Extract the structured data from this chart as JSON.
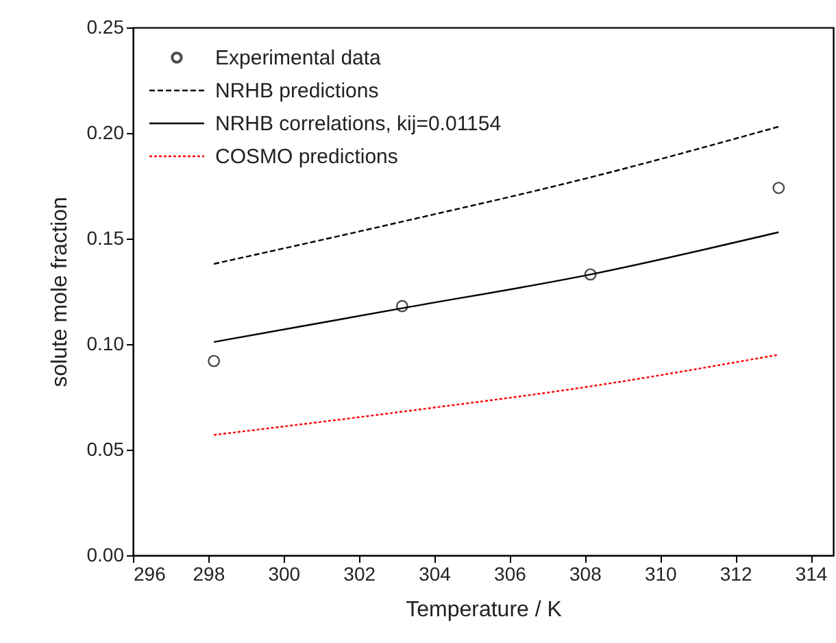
{
  "chart_data": {
    "type": "line",
    "xlabel": "Temperature / K",
    "ylabel": "solute mole fraction",
    "xlim": [
      296,
      314.6
    ],
    "xticks": [
      296,
      298,
      300,
      302,
      304,
      306,
      308,
      310,
      312,
      314
    ],
    "ylim": [
      0,
      0.25
    ],
    "yticks": [
      {
        "value": 0,
        "label": "0.00"
      },
      {
        "value": 0.05,
        "label": "0.05"
      },
      {
        "value": 0.1,
        "label": "0.10"
      },
      {
        "value": 0.15,
        "label": "0.15"
      },
      {
        "value": 0.2,
        "label": "0.20"
      },
      {
        "value": 0.25,
        "label": "0.25"
      }
    ],
    "grid": false,
    "legend": "top left",
    "series": [
      {
        "name": "Experimental data",
        "type": "scatter",
        "marker": "circle",
        "color": "#000000",
        "x": [
          298.15,
          303.15,
          308.15,
          313.15
        ],
        "values": [
          0.092,
          0.118,
          0.133,
          0.174
        ]
      },
      {
        "name": "NRHB predictions",
        "line_style": "dashed",
        "color": "#000000",
        "x": [
          298.15,
          303.15,
          308.15,
          313.15
        ],
        "values": [
          0.138,
          0.158,
          0.179,
          0.203
        ]
      },
      {
        "name": "NRHB correlations, kij=0.01154",
        "line_style": "solid",
        "color": "#000000",
        "x": [
          298.15,
          303.15,
          308.15,
          313.15
        ],
        "values": [
          0.101,
          0.117,
          0.133,
          0.153
        ]
      },
      {
        "name": "COSMO predictions",
        "line_style": "dotted",
        "color": "#ff0000",
        "x": [
          298.15,
          303.15,
          308.15,
          313.15
        ],
        "values": [
          0.057,
          0.068,
          0.08,
          0.095
        ]
      }
    ]
  }
}
